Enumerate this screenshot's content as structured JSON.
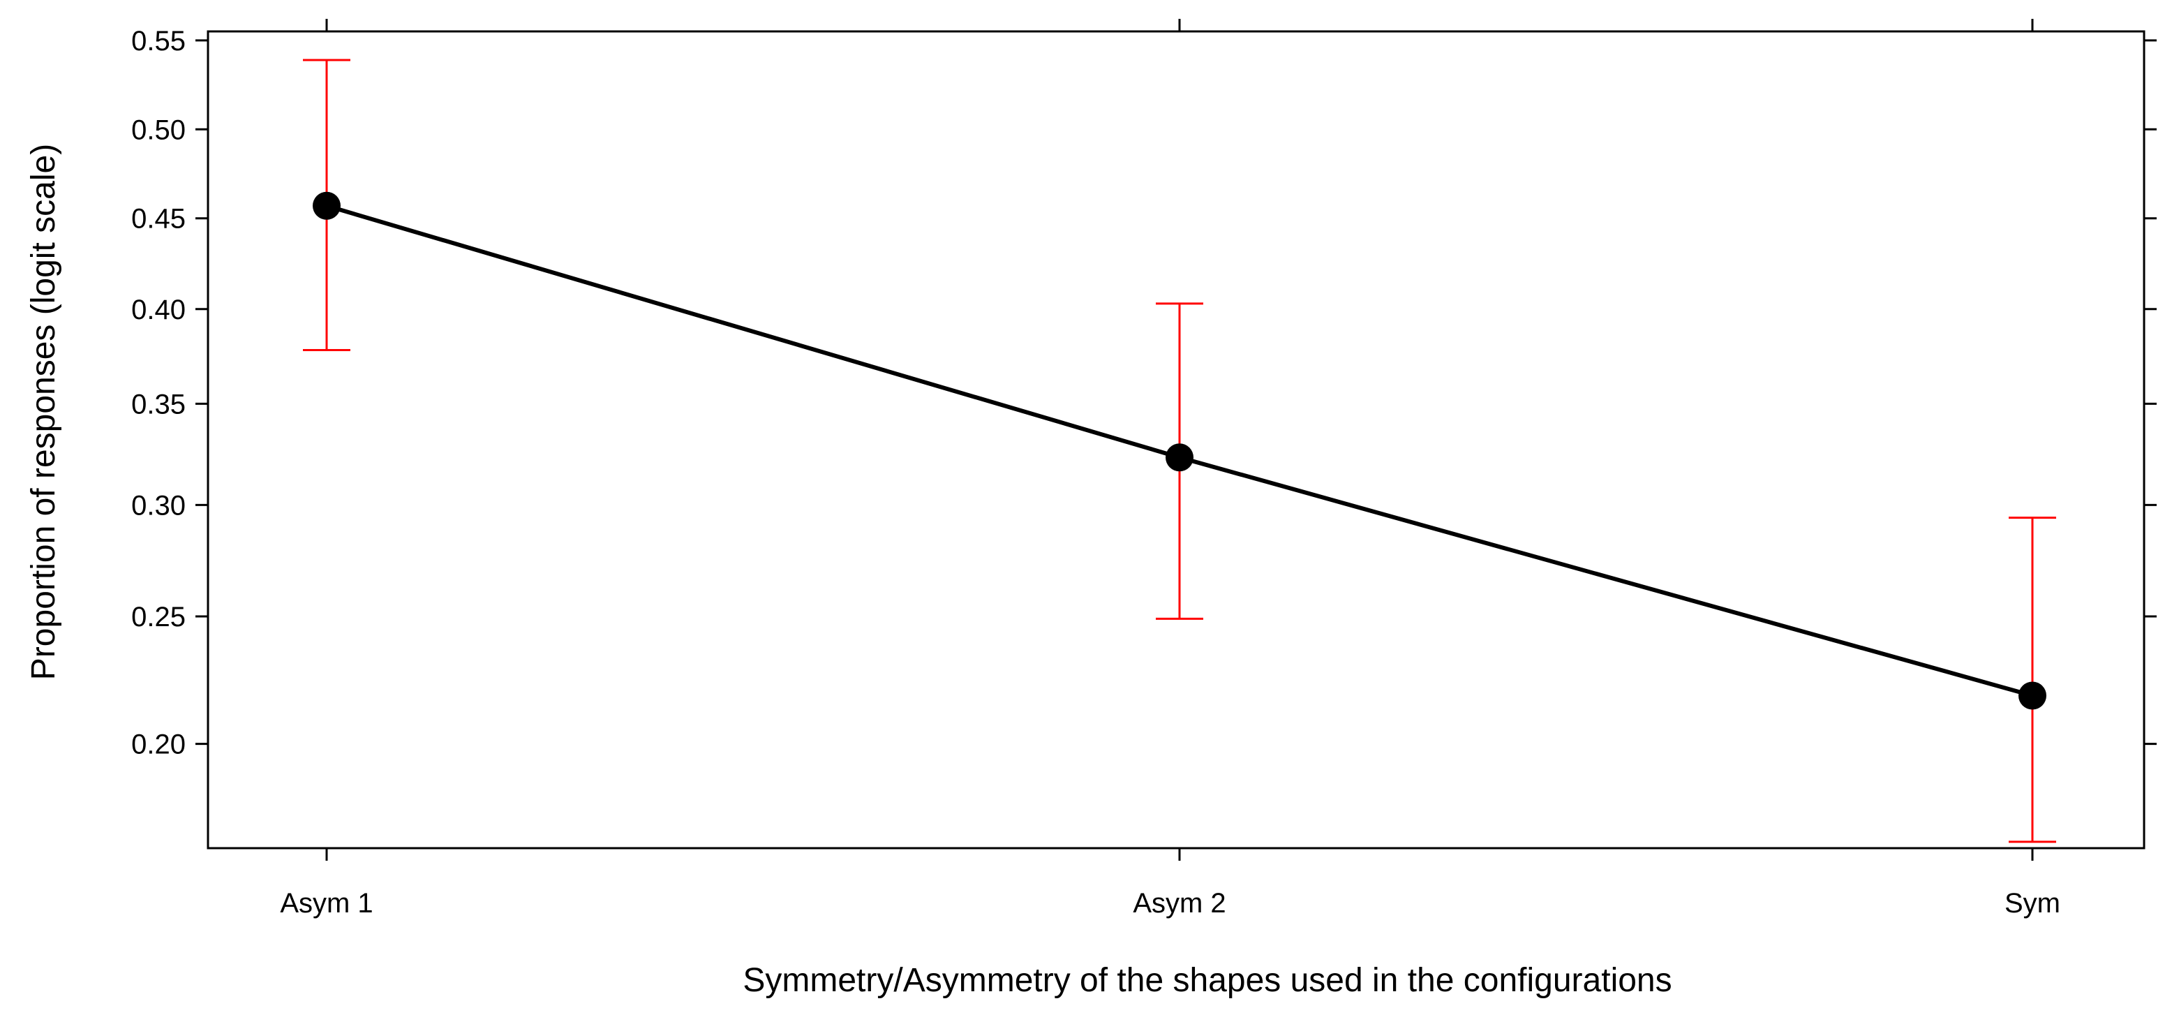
{
  "chart_data": {
    "type": "line",
    "title": "",
    "xlabel": "Symmetry/Asymmetry of the shapes used in the configurations",
    "ylabel": "Proportion of responses (logit scale)",
    "y_scale": "logit",
    "ylim": [
      0.165,
      0.555
    ],
    "yticks": [
      0.2,
      0.25,
      0.3,
      0.35,
      0.4,
      0.45,
      0.5,
      0.55
    ],
    "ytick_labels": [
      "0.20",
      "0.25",
      "0.30",
      "0.35",
      "0.40",
      "0.45",
      "0.50",
      "0.55"
    ],
    "categories": [
      "Asym 1",
      "Asym 2",
      "Sym"
    ],
    "series": [
      {
        "values": [
          0.457,
          0.323,
          0.218
        ],
        "lower": [
          0.378,
          0.249,
          0.167
        ],
        "upper": [
          0.539,
          0.403,
          0.294
        ]
      }
    ],
    "line_color": "#000000",
    "errorbar_color": "#ff0000",
    "grid": false,
    "legend": "none"
  }
}
